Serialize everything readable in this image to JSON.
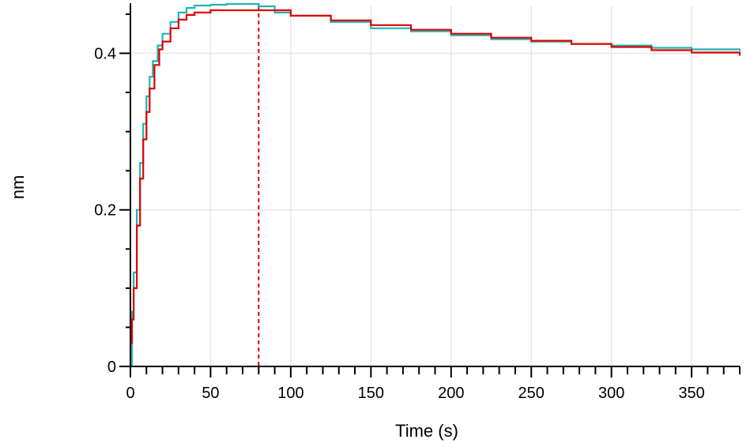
{
  "chart_data": {
    "type": "line",
    "title": "",
    "xlabel": "Time (s)",
    "ylabel": "nm",
    "xlim": [
      0,
      380
    ],
    "ylim": [
      0,
      0.46
    ],
    "x_ticks": [
      0,
      50,
      100,
      150,
      200,
      250,
      300,
      350
    ],
    "x_tick_labels": [
      "0",
      "50",
      "100",
      "150",
      "200",
      "250",
      "300",
      "350"
    ],
    "y_ticks": [
      0,
      0.2,
      0.4
    ],
    "y_tick_labels": [
      "0",
      "0.2",
      "0.4"
    ],
    "x_minor_step": 10,
    "y_minor_step": 0.05,
    "grid": true,
    "legend": "none",
    "annotations": [
      {
        "type": "vertical-dashed-line",
        "x": 0,
        "color": "#e00000"
      },
      {
        "type": "vertical-dashed-line",
        "x": 80,
        "color": "#e00000"
      }
    ],
    "series": [
      {
        "color": "#1fb4b4",
        "x": [
          0,
          1,
          2,
          4,
          6,
          8,
          10,
          12,
          14,
          17,
          20,
          25,
          30,
          35,
          40,
          50,
          60,
          70,
          80,
          90,
          100,
          125,
          150,
          175,
          200,
          225,
          250,
          275,
          300,
          325,
          350,
          380
        ],
        "y": [
          0.0,
          0.07,
          0.12,
          0.2,
          0.26,
          0.31,
          0.345,
          0.37,
          0.39,
          0.41,
          0.425,
          0.44,
          0.452,
          0.458,
          0.461,
          0.462,
          0.463,
          0.463,
          0.46,
          0.452,
          0.448,
          0.44,
          0.432,
          0.428,
          0.423,
          0.418,
          0.415,
          0.412,
          0.41,
          0.407,
          0.405,
          0.403
        ]
      },
      {
        "color": "#e00000",
        "x": [
          0,
          1,
          2,
          4,
          6,
          8,
          10,
          12,
          15,
          18,
          20,
          25,
          30,
          35,
          40,
          50,
          60,
          70,
          80,
          100,
          125,
          150,
          175,
          200,
          225,
          250,
          275,
          300,
          325,
          350,
          380
        ],
        "y": [
          0.03,
          0.06,
          0.1,
          0.18,
          0.24,
          0.29,
          0.325,
          0.355,
          0.385,
          0.405,
          0.415,
          0.432,
          0.443,
          0.449,
          0.452,
          0.455,
          0.455,
          0.455,
          0.455,
          0.448,
          0.442,
          0.436,
          0.43,
          0.425,
          0.42,
          0.416,
          0.412,
          0.408,
          0.404,
          0.401,
          0.397
        ]
      }
    ]
  }
}
